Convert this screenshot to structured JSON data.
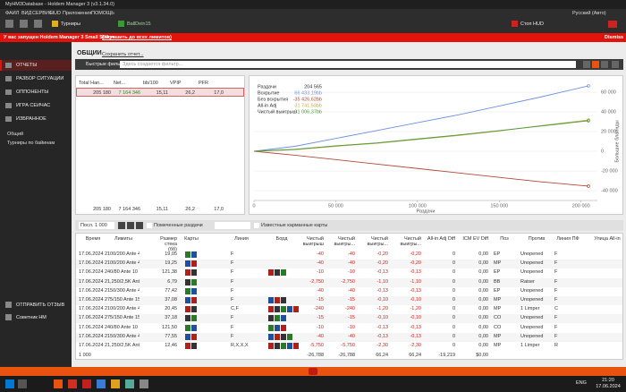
{
  "window": {
    "title": "MyHM3Database - Holdem Manager 3 (v3.1.34.0)"
  },
  "menu": {
    "items": [
      "ФАЙЛ",
      "ВИД",
      "СЕРВИС",
      "HUD",
      "Приложения",
      "ПОМОЩЬ"
    ],
    "language": "Русский (Авто)"
  },
  "toolbar": {
    "tournaments": "Турниры",
    "player": "BallDein15",
    "stop_hud": "Стоп HUD"
  },
  "banner": {
    "text": "У вас запущен Holdem Manager 3 Small Stakes",
    "link": "(Улучшить до всех лимитов)",
    "dismiss": "Dismiss"
  },
  "sidebar": {
    "items": [
      "ОТЧЁТЫ",
      "РАЗБОР СИТУАЦИЙ",
      "ОППОНЕНТЫ",
      "ИГРА СЕЙЧАС",
      "ИЗБРАННОЕ"
    ],
    "sub_items": [
      "Общий",
      "Турниры по байинам"
    ],
    "bottom_items": [
      "ОТПРАВИТЬ ОТЗЫВ",
      "Советник HM"
    ]
  },
  "report": {
    "title": "ОБЩИЙ",
    "save": "Сохранить отчет...",
    "quick_filters": "Быстрые фильт...",
    "filter_placeholder": "Здесь создается фильтр..."
  },
  "summary_table": {
    "columns": [
      "Total Han...",
      "Net...",
      "bb/100",
      "VPIP",
      "PFR"
    ],
    "row": [
      "205 180",
      "7 164 346",
      "15,11",
      "26,2",
      "17,0"
    ],
    "footer": [
      "205 180",
      "7 164 346",
      "15,11",
      "26,2",
      "17,0"
    ]
  },
  "chart_data": {
    "type": "line",
    "x_label": "Раздачи",
    "y_label": "Большие блайнды",
    "hands_label": "Раздачи",
    "hands_value": "204 565",
    "x": [
      0,
      25000,
      50000,
      75000,
      100000,
      125000,
      150000,
      175000,
      204565
    ],
    "series": [
      {
        "name": "Вскрытие",
        "total": "66 433,19bb",
        "color": "#6f8fe0",
        "values": [
          0,
          5000,
          13000,
          21000,
          29000,
          37000,
          46000,
          55000,
          66433
        ]
      },
      {
        "name": "Без вскрытия",
        "total": "-35 426,62bb",
        "color": "#b5473a",
        "values": [
          0,
          -4000,
          -8500,
          -13000,
          -17500,
          -22000,
          -26500,
          -31000,
          -35426
        ]
      },
      {
        "name": "All-in Adj",
        "total": "31 741,53bb",
        "color": "#c9ad52",
        "values": [
          0,
          1500,
          5000,
          8000,
          12000,
          16000,
          20500,
          26000,
          31741
        ]
      },
      {
        "name": "Чистый выигрыш",
        "total": "31 006,37bb",
        "color": "#4c9a3c",
        "values": [
          0,
          2000,
          5500,
          8500,
          12500,
          16500,
          21000,
          25500,
          31006
        ]
      }
    ],
    "xlim": [
      0,
      210000
    ],
    "xticks": [
      0,
      {
        "value": 50000,
        "label": "50 000"
      },
      {
        "value": 100000,
        "label": "100 000"
      },
      {
        "value": 150000,
        "label": "150 000"
      },
      {
        "value": 200000,
        "label": "200 000"
      }
    ],
    "ylim": [
      -50000,
      70000
    ],
    "yticks": [
      {
        "value": -40000,
        "label": "-40 000"
      },
      {
        "value": -20000,
        "label": "-20 000"
      },
      0,
      {
        "value": 20000,
        "label": "20 000"
      },
      {
        "value": 40000,
        "label": "40 000"
      },
      {
        "value": 60000,
        "label": "60 000"
      }
    ],
    "y_axis_side": "right",
    "grid": true
  },
  "hands_controls": {
    "last": "Посл. 1 000",
    "marked": "Помеченные раздачи",
    "known_cards": "Известные карманные карты"
  },
  "hands_table": {
    "columns": [
      "Время",
      "Лимиты",
      "Размер стека (бб)",
      "Карты",
      "Линия",
      "Борд",
      "Чистый выигрыш",
      "Чистый выигры...",
      "Чистый выигры...",
      "Чистый выигры...",
      "All-in Adj Diff",
      "ICM EV Diff",
      "Поз",
      "Против",
      "Линия ПФ",
      "Улица All-in"
    ],
    "rows": [
      [
        "17.06.2024 21:18",
        "100/200 Ante 4'",
        "19,05",
        "F",
        "-40",
        "-40",
        "-0,20",
        "-0,20",
        "0",
        "0,00",
        "EP",
        "Unopened",
        "F"
      ],
      [
        "17.06.2024 21:18",
        "100/200 Ante 4'",
        "19,25",
        "F",
        "-40",
        "-40",
        "-0,20",
        "-0,20",
        "0",
        "0,00",
        "MP",
        "Unopened",
        "F"
      ],
      [
        "17.06.2024 21:18",
        "40/80 Ante 10",
        "121,38",
        "F",
        "-10",
        "-10",
        "-0,13",
        "-0,13",
        "0",
        "0,00",
        "EP",
        "Unopened",
        "F"
      ],
      [
        "17.06.2024 21:18",
        "1,250/2,5K Ante",
        "6,79",
        "F",
        "-2,750",
        "-2,750",
        "-1,10",
        "-1,10",
        "0",
        "0,00",
        "BB",
        "Raiser",
        "F"
      ],
      [
        "17.06.2024 21:18",
        "150/300 Ante 4'",
        "77,42",
        "F",
        "-40",
        "-40",
        "-0,13",
        "-0,13",
        "0",
        "0,00",
        "EP",
        "Unopened",
        "F"
      ],
      [
        "17.06.2024 21:18",
        "75/150 Ante 15",
        "37,08",
        "F",
        "-15",
        "-15",
        "-0,10",
        "-0,10",
        "0",
        "0,00",
        "MP",
        "Unopened",
        "F"
      ],
      [
        "17.06.2024 21:17",
        "100/200 Ante 4'",
        "20,45",
        "C,F",
        "-240",
        "-240",
        "-1,20",
        "-1,20",
        "0",
        "0,00",
        "MP",
        "1 Limper",
        "C"
      ],
      [
        "17.06.2024 21:17",
        "75/150 Ante 15",
        "37,18",
        "F",
        "-15",
        "-15",
        "-0,10",
        "-0,10",
        "0",
        "0,00",
        "CO",
        "Unopened",
        "F"
      ],
      [
        "17.06.2024 21:17",
        "40/80 Ante 10",
        "121,50",
        "F",
        "-10",
        "-10",
        "-0,13",
        "-0,13",
        "0",
        "0,00",
        "CO",
        "Unopened",
        "F"
      ],
      [
        "17.06.2024 21:17",
        "150/300 Ante 4'",
        "77,55",
        "F",
        "-40",
        "-40",
        "-0,13",
        "-0,13",
        "0",
        "0,00",
        "MP",
        "Unopened",
        "F"
      ],
      [
        "17.06.2024 21:17",
        "1,250/2,5K Ante",
        "12,46",
        "R,X,X,X",
        "-5,750",
        "-5,750",
        "-2,30",
        "-2,30",
        "0",
        "0,00",
        "MP",
        "1 Limper",
        "R"
      ]
    ],
    "footer": [
      "1 000",
      "-26,788",
      "-26,788",
      "66,24",
      "66,24",
      "-19,219",
      "$0,00"
    ]
  },
  "taskbar": {
    "lang": "ENG",
    "time": "21:20",
    "date": "17.06.2024"
  }
}
